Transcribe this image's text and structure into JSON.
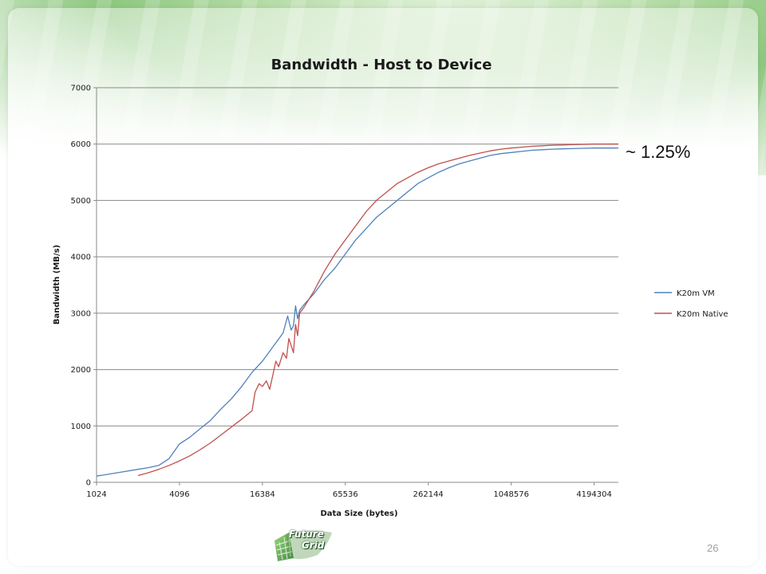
{
  "slide": {
    "annotation": "~ 1.25%",
    "page_number": "26",
    "logo": {
      "line1": "Future",
      "line2": "Grid"
    }
  },
  "chart_data": {
    "type": "line",
    "title": "Bandwidth - Host to Device",
    "xlabel": "Data Size (bytes)",
    "ylabel": "Bandwidth  (MB/s)",
    "x_scale": "log2",
    "x_ticks": [
      "1024",
      "4096",
      "16384",
      "65536",
      "262144",
      "1048576",
      "4194304"
    ],
    "xlim": [
      1024,
      6291456
    ],
    "ylim": [
      0,
      7000
    ],
    "y_ticks": [
      "0",
      "1000",
      "2000",
      "3000",
      "4000",
      "5000",
      "6000",
      "7000"
    ],
    "grid": "horizontal",
    "legend_position": "right",
    "series": [
      {
        "name": "K20m VM",
        "color": "#4f81bd",
        "x": [
          1024,
          1448,
          2048,
          2435,
          2896,
          3444,
          4096,
          4871,
          5793,
          6889,
          8192,
          9742,
          11585,
          13777,
          16384,
          19484,
          23170,
          25000,
          26500,
          27554,
          28500,
          29500,
          30500,
          32768,
          38968,
          46341,
          55109,
          65536,
          77936,
          92682,
          110218,
          131072,
          155872,
          185364,
          220436,
          262144,
          311744,
          370728,
          440872,
          524288,
          623487,
          741455,
          881744,
          1048576,
          1246974,
          1482910,
          1763488,
          2097152,
          2493948,
          2965820,
          3526976,
          4194304,
          4987896,
          5931640,
          6291456
        ],
        "y": [
          110,
          170,
          230,
          260,
          300,
          420,
          680,
          800,
          950,
          1100,
          1300,
          1480,
          1700,
          1950,
          2150,
          2400,
          2650,
          2950,
          2700,
          2780,
          3130,
          2900,
          3050,
          3150,
          3350,
          3600,
          3800,
          4050,
          4300,
          4500,
          4700,
          4850,
          5000,
          5150,
          5300,
          5400,
          5500,
          5580,
          5650,
          5700,
          5750,
          5800,
          5830,
          5850,
          5870,
          5890,
          5900,
          5910,
          5915,
          5920,
          5925,
          5930,
          5930,
          5930,
          5930
        ]
      },
      {
        "name": "K20m Native",
        "color": "#c0504d",
        "x": [
          2048,
          2435,
          2896,
          3444,
          4096,
          4871,
          5793,
          6889,
          8192,
          9742,
          11585,
          13777,
          14500,
          15500,
          16384,
          17500,
          18500,
          19484,
          20500,
          21500,
          23170,
          24500,
          25500,
          27554,
          28500,
          29500,
          30500,
          32768,
          38968,
          46341,
          55109,
          65536,
          77936,
          92682,
          110218,
          131072,
          155872,
          185364,
          220436,
          262144,
          311744,
          370728,
          440872,
          524288,
          623487,
          741455,
          881744,
          1048576,
          1246974,
          1482910,
          1763488,
          2097152,
          2493948,
          2965820,
          3526976,
          4194304,
          4987896,
          5931640,
          6291456
        ],
        "y": [
          120,
          170,
          230,
          300,
          380,
          470,
          580,
          700,
          840,
          980,
          1120,
          1270,
          1600,
          1750,
          1700,
          1800,
          1650,
          1900,
          2150,
          2050,
          2300,
          2200,
          2550,
          2300,
          2800,
          2600,
          3000,
          3100,
          3400,
          3750,
          4050,
          4300,
          4550,
          4800,
          5000,
          5150,
          5300,
          5400,
          5500,
          5580,
          5650,
          5700,
          5750,
          5800,
          5840,
          5880,
          5910,
          5930,
          5945,
          5960,
          5970,
          5980,
          5985,
          5990,
          5995,
          6000,
          6000,
          6000,
          6000
        ]
      }
    ]
  }
}
